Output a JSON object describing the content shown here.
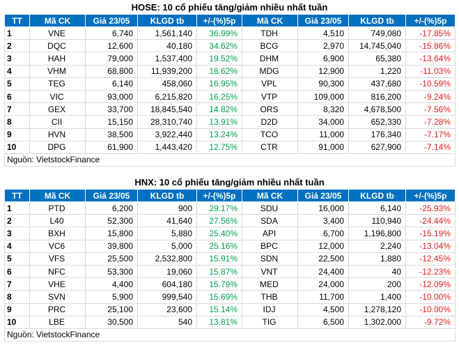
{
  "tables": [
    {
      "title": "HOSE: 10 cổ phiếu tăng/giảm nhiều nhất tuần",
      "header": [
        "TT",
        "Mã CK",
        "Giá 23/05",
        "KLGD tb",
        "+/-(%)5p",
        "Mã CK",
        "Giá 23/05",
        "KLGD tb",
        "+/-(%)5p"
      ],
      "rows": [
        [
          "1",
          "VNE",
          "6,740",
          "1,561,140",
          "36.99%",
          "TDH",
          "4,510",
          "749,080",
          "-17.85%"
        ],
        [
          "2",
          "DQC",
          "12,600",
          "40,180",
          "34.62%",
          "BCG",
          "2,970",
          "14,745,040",
          "-15.86%"
        ],
        [
          "3",
          "HAH",
          "79,000",
          "1,537,400",
          "19.52%",
          "DHM",
          "6,900",
          "65,380",
          "-13.64%"
        ],
        [
          "4",
          "VHM",
          "68,800",
          "11,939,200",
          "18.62%",
          "MDG",
          "12,900",
          "1,220",
          "-11.03%"
        ],
        [
          "5",
          "TEG",
          "6,140",
          "458,060",
          "16.95%",
          "VPL",
          "90,300",
          "437,680",
          "-10.59%"
        ],
        [
          "6",
          "VIC",
          "93,000",
          "6,215,820",
          "16.25%",
          "VTP",
          "109,000",
          "816,200",
          "-9.24%"
        ],
        [
          "7",
          "GEX",
          "33,700",
          "18,845,540",
          "14.82%",
          "ORS",
          "8,320",
          "4,678,500",
          "-7.56%"
        ],
        [
          "8",
          "CII",
          "15,150",
          "28,310,740",
          "13.91%",
          "D2D",
          "34,000",
          "652,330",
          "-7.28%"
        ],
        [
          "9",
          "HVN",
          "38,500",
          "3,922,440",
          "13.24%",
          "TCO",
          "11,000",
          "176,340",
          "-7.17%"
        ],
        [
          "10",
          "DPG",
          "61,900",
          "1,443,420",
          "12.75%",
          "CTR",
          "91,000",
          "627,900",
          "-7.14%"
        ]
      ],
      "source": "Nguồn: VietstockFinance"
    },
    {
      "title": "HNX: 10 cổ phiếu tăng/giảm nhiều nhất tuần",
      "header": [
        "TT",
        "Mã CK",
        "Giá 23/05",
        "KLGD tb",
        "+/-(%)5p",
        "Mã CK",
        "Giá 23/05",
        "KLGD tb",
        "+/-(%)5p"
      ],
      "rows": [
        [
          "1",
          "PTD",
          "6,200",
          "900",
          "29.17%",
          "SDU",
          "16,000",
          "6,140",
          "-25.93%"
        ],
        [
          "2",
          "L40",
          "52,300",
          "41,640",
          "27.56%",
          "SDA",
          "3,400",
          "110,940",
          "-24.44%"
        ],
        [
          "3",
          "BXH",
          "15,800",
          "5,880",
          "25.40%",
          "API",
          "6,700",
          "1,196,800",
          "-15.19%"
        ],
        [
          "4",
          "VC6",
          "39,800",
          "5,000",
          "25.16%",
          "BPC",
          "12,000",
          "2,240",
          "-13.04%"
        ],
        [
          "5",
          "VFS",
          "25,500",
          "2,532,800",
          "15.91%",
          "SDN",
          "22,500",
          "1,880",
          "-12.45%"
        ],
        [
          "6",
          "NFC",
          "53,300",
          "19,060",
          "15.87%",
          "VNT",
          "24,400",
          "40",
          "-12.23%"
        ],
        [
          "7",
          "VHE",
          "4,400",
          "604,180",
          "15.79%",
          "MED",
          "24,000",
          "200",
          "-12.09%"
        ],
        [
          "8",
          "SVN",
          "5,900",
          "999,540",
          "15.69%",
          "THB",
          "11,700",
          "1,400",
          "-10.00%"
        ],
        [
          "9",
          "PRC",
          "25,100",
          "23,600",
          "15.14%",
          "IDJ",
          "4,500",
          "1,278,120",
          "-10.00%"
        ],
        [
          "10",
          "LBE",
          "30,500",
          "540",
          "13.81%",
          "TIG",
          "6,500",
          "1,302,000",
          "-9.72%"
        ]
      ],
      "source": "Nguồn: VietstockFinance"
    }
  ]
}
